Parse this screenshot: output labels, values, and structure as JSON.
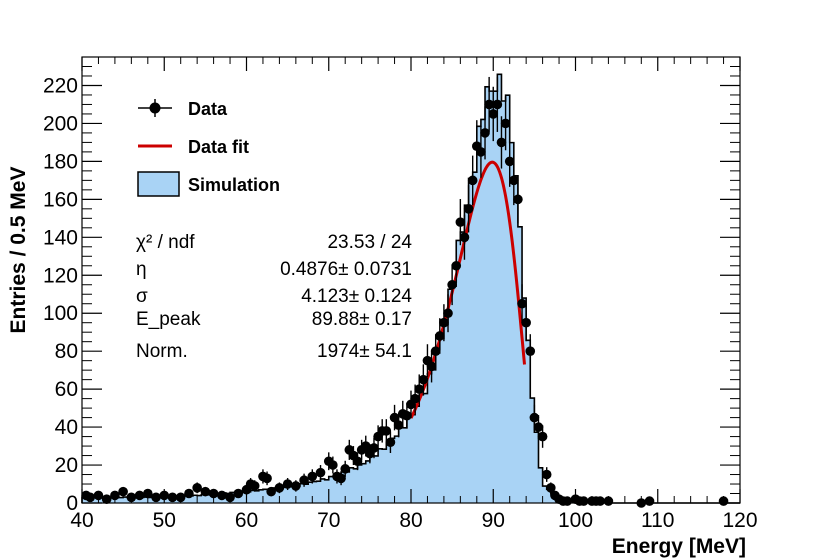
{
  "chart_data": {
    "type": "histogram",
    "xlabel": "Energy [MeV]",
    "ylabel": "Entries / 0.5 MeV",
    "xlim": [
      40,
      120
    ],
    "ylim": [
      0,
      235
    ],
    "x_ticks": [
      "40",
      "50",
      "60",
      "70",
      "80",
      "90",
      "100",
      "110",
      "120"
    ],
    "y_ticks": [
      "0",
      "20",
      "40",
      "60",
      "80",
      "100",
      "120",
      "140",
      "160",
      "180",
      "200",
      "220"
    ],
    "legend": {
      "position": "top-left",
      "entries": [
        {
          "label": "Data",
          "style": "marker-errorbar",
          "color": "#000000"
        },
        {
          "label": "Data fit",
          "style": "line",
          "color": "#cc0000"
        },
        {
          "label": "Simulation",
          "style": "filled-box",
          "color": "#a9d3f5"
        }
      ]
    },
    "stats": [
      {
        "name": "χ² / ndf",
        "value": "23.53 / 24"
      },
      {
        "name": "η",
        "value": "0.4876± 0.0731"
      },
      {
        "name": "σ",
        "value": "4.123± 0.124"
      },
      {
        "name": "E_peak",
        "value": "89.88± 0.17"
      },
      {
        "name": "Norm.",
        "value": "1974± 54.1"
      }
    ],
    "fit": {
      "model": "Novosibirsk",
      "x_range": [
        80,
        93.8
      ],
      "peak": 89.88,
      "sigma": 4.123,
      "eta": 0.4876,
      "amplitude": 200
    },
    "simulation": {
      "name": "Simulation",
      "bin_width": 0.5,
      "segments": [
        {
          "x": [
            40,
            48
          ],
          "y": [
            3,
            3
          ]
        },
        {
          "x": [
            48,
            54
          ],
          "y": [
            3,
            4
          ]
        },
        {
          "x": [
            54,
            60
          ],
          "y": [
            4,
            6
          ]
        },
        {
          "x": [
            60,
            66
          ],
          "y": [
            6,
            9
          ]
        },
        {
          "x": [
            66,
            70
          ],
          "y": [
            9,
            13
          ]
        },
        {
          "x": [
            70,
            74
          ],
          "y": [
            13,
            20
          ]
        },
        {
          "x": [
            74,
            77
          ],
          "y": [
            20,
            30
          ]
        },
        {
          "x": [
            77,
            80
          ],
          "y": [
            30,
            45
          ]
        },
        {
          "x": [
            80,
            82
          ],
          "y": [
            45,
            62
          ]
        },
        {
          "x": [
            82,
            84
          ],
          "y": [
            62,
            90
          ]
        },
        {
          "x": [
            84,
            86
          ],
          "y": [
            90,
            140
          ]
        },
        {
          "x": [
            86,
            88
          ],
          "y": [
            140,
            185
          ]
        },
        {
          "x": [
            88,
            89
          ],
          "y": [
            185,
            215
          ]
        },
        {
          "x": [
            89,
            91
          ],
          "y": [
            215,
            222
          ]
        },
        {
          "x": [
            91,
            92
          ],
          "y": [
            222,
            205
          ]
        },
        {
          "x": [
            92,
            93
          ],
          "y": [
            205,
            160
          ]
        },
        {
          "x": [
            93,
            94
          ],
          "y": [
            160,
            95
          ]
        },
        {
          "x": [
            94,
            95
          ],
          "y": [
            95,
            45
          ]
        },
        {
          "x": [
            95,
            96
          ],
          "y": [
            45,
            10
          ]
        },
        {
          "x": [
            96,
            98
          ],
          "y": [
            10,
            2
          ]
        },
        {
          "x": [
            98,
            104
          ],
          "y": [
            2,
            0
          ]
        }
      ]
    },
    "data": {
      "name": "Data",
      "points": [
        [
          40.5,
          4
        ],
        [
          41,
          3
        ],
        [
          42,
          4
        ],
        [
          43,
          2
        ],
        [
          44,
          4
        ],
        [
          45,
          6
        ],
        [
          46,
          3
        ],
        [
          47,
          4
        ],
        [
          48,
          5
        ],
        [
          49,
          3
        ],
        [
          50,
          4
        ],
        [
          51,
          3
        ],
        [
          52,
          3
        ],
        [
          53,
          5
        ],
        [
          54,
          8
        ],
        [
          55,
          6
        ],
        [
          56,
          5
        ],
        [
          57,
          4
        ],
        [
          58,
          3
        ],
        [
          59,
          5
        ],
        [
          60,
          7
        ],
        [
          60.5,
          10
        ],
        [
          61,
          9
        ],
        [
          62,
          14
        ],
        [
          62.5,
          13
        ],
        [
          63,
          6
        ],
        [
          64,
          8
        ],
        [
          65,
          10
        ],
        [
          66,
          9
        ],
        [
          67,
          12
        ],
        [
          68,
          14
        ],
        [
          69,
          16
        ],
        [
          70,
          22
        ],
        [
          70.5,
          20
        ],
        [
          71,
          14
        ],
        [
          71.5,
          13
        ],
        [
          72,
          18
        ],
        [
          72.5,
          28
        ],
        [
          73,
          25
        ],
        [
          73.5,
          22
        ],
        [
          74,
          28
        ],
        [
          74.5,
          30
        ],
        [
          75,
          26
        ],
        [
          75.5,
          29
        ],
        [
          76,
          35
        ],
        [
          76.5,
          38
        ],
        [
          77,
          38
        ],
        [
          77.5,
          32
        ],
        [
          78,
          45
        ],
        [
          78.5,
          41
        ],
        [
          79,
          47
        ],
        [
          79.5,
          46
        ],
        [
          80,
          52
        ],
        [
          80.5,
          55
        ],
        [
          81,
          60
        ],
        [
          81.5,
          65
        ],
        [
          82,
          75
        ],
        [
          82.5,
          72
        ],
        [
          83,
          80
        ],
        [
          83.5,
          88
        ],
        [
          84,
          95
        ],
        [
          84.5,
          100
        ],
        [
          85,
          115
        ],
        [
          85.5,
          125
        ],
        [
          86,
          148
        ],
        [
          86.5,
          140
        ],
        [
          87,
          155
        ],
        [
          87.5,
          170
        ],
        [
          88,
          188
        ],
        [
          88.5,
          185
        ],
        [
          89,
          195
        ],
        [
          89.5,
          210
        ],
        [
          90,
          205
        ],
        [
          90.5,
          210
        ],
        [
          91,
          190
        ],
        [
          91.5,
          200
        ],
        [
          92,
          180
        ],
        [
          92.5,
          170
        ],
        [
          93,
          160
        ],
        [
          93.5,
          105
        ],
        [
          94,
          95
        ],
        [
          94.5,
          80
        ],
        [
          95,
          45
        ],
        [
          95.5,
          40
        ],
        [
          96,
          35
        ],
        [
          96.5,
          15
        ],
        [
          97,
          8
        ],
        [
          97.5,
          4
        ],
        [
          98,
          2
        ],
        [
          98.5,
          1
        ],
        [
          99,
          1
        ],
        [
          100,
          2
        ],
        [
          100.5,
          1
        ],
        [
          101,
          1
        ],
        [
          102,
          1
        ],
        [
          102.5,
          1
        ],
        [
          103,
          1
        ],
        [
          104,
          1
        ],
        [
          108,
          0
        ],
        [
          109,
          1
        ],
        [
          118,
          1
        ]
      ]
    }
  }
}
